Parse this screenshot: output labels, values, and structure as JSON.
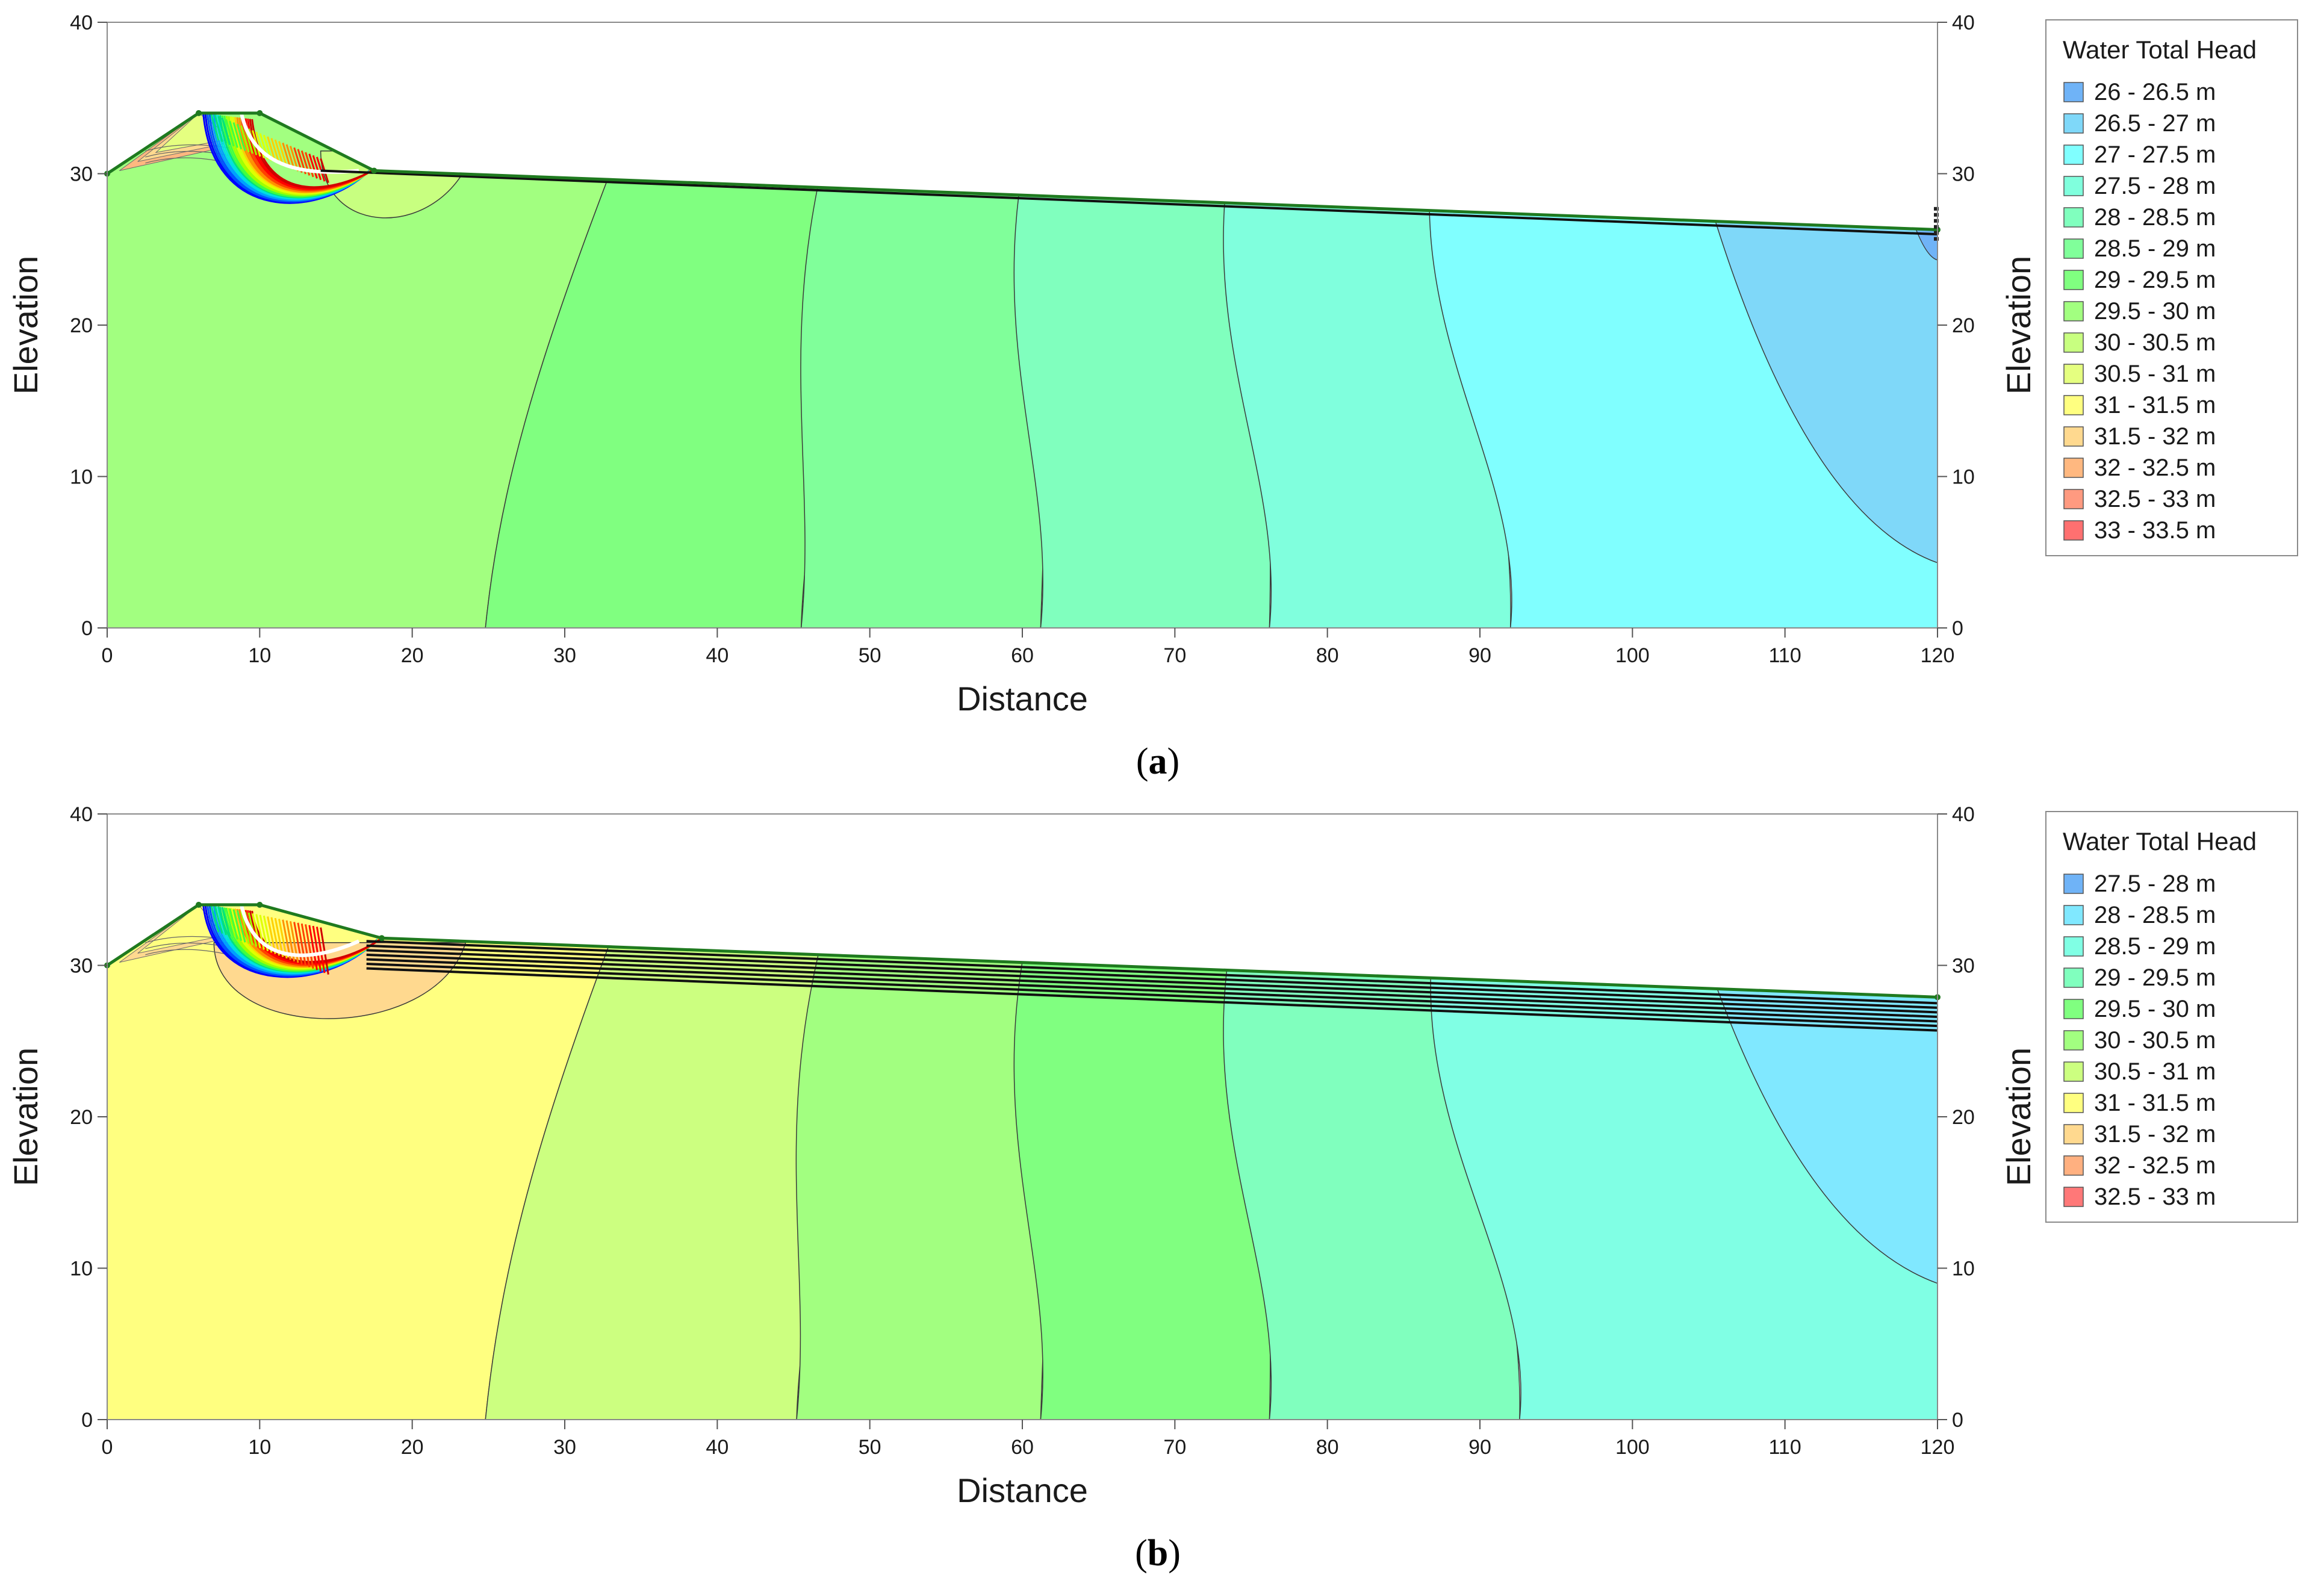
{
  "chart_data": [
    {
      "type": "heatmap",
      "panel_label": "a",
      "xlabel": "Distance",
      "ylabel": "Elevation",
      "xlim": [
        0,
        120
      ],
      "ylim": [
        0,
        40
      ],
      "xticks": [
        0,
        10,
        20,
        30,
        40,
        50,
        60,
        70,
        80,
        90,
        100,
        110,
        120
      ],
      "yticks": [
        0,
        10,
        20,
        30,
        40
      ],
      "legend_position": "right",
      "legend_title": "Water Total Head",
      "legend": [
        {
          "label": "26 - 26.5 m",
          "color": "#6fb3f7"
        },
        {
          "label": "26.5 - 27 m",
          "color": "#7fd8f9"
        },
        {
          "label": "27 - 27.5 m",
          "color": "#80ffff"
        },
        {
          "label": "27.5 - 28 m",
          "color": "#80ffdd"
        },
        {
          "label": "28 - 28.5 m",
          "color": "#80ffbe"
        },
        {
          "label": "28.5 - 29 m",
          "color": "#80ff9a"
        },
        {
          "label": "29 - 29.5 m",
          "color": "#80ff80"
        },
        {
          "label": "29.5 - 30 m",
          "color": "#a2ff80"
        },
        {
          "label": "30 - 30.5 m",
          "color": "#c8ff80"
        },
        {
          "label": "30.5 - 31 m",
          "color": "#e5ff80"
        },
        {
          "label": "31 - 31.5 m",
          "color": "#ffff80"
        },
        {
          "label": "31.5 - 32 m",
          "color": "#ffd98f"
        },
        {
          "label": "32 - 32.5 m",
          "color": "#ffb880"
        },
        {
          "label": "32.5 - 33 m",
          "color": "#ff9a80"
        },
        {
          "label": "33 - 33.5 m",
          "color": "#ff7070"
        }
      ],
      "bands": [
        {
          "head": "29.5 - 30 m",
          "bottom_x": 0
        },
        {
          "head": "29 - 29.5 m",
          "bottom_x": 24.8
        },
        {
          "head": "28.5 - 29 m",
          "bottom_x": 45.5
        },
        {
          "head": "28 - 28.5 m",
          "bottom_x": 61.2
        },
        {
          "head": "27.5 - 28 m",
          "bottom_x": 76.2
        },
        {
          "head": "27 - 27.5 m",
          "bottom_x": 92
        }
      ],
      "contour_boundaries_top_x": [
        36.8,
        49.8,
        62.7,
        76.0,
        89.0
      ],
      "outlet_region": {
        "head": "26.5 - 27 m",
        "top_x": 102,
        "right_elevation": 4.3
      },
      "corner_region": {
        "head": "26 - 26.5 m",
        "top_x": 115.5,
        "right_elevation": 24.3
      },
      "ground_surface": [
        [
          0,
          30
        ],
        [
          6,
          34
        ],
        [
          10,
          34
        ],
        [
          17.5,
          30.2
        ],
        [
          120,
          26.3
        ]
      ],
      "phreatic_lines": [
        [
          [
            14,
            30.2
          ],
          [
            120,
            26
          ]
        ]
      ],
      "seepage_bulb": {
        "head": "30 - 30.5 m",
        "from_x": 14.0,
        "to_x": 24.0,
        "bottom_elevation": 26.8
      }
    },
    {
      "type": "heatmap",
      "panel_label": "b",
      "xlabel": "Distance",
      "ylabel": "Elevation",
      "xlim": [
        0,
        120
      ],
      "ylim": [
        0,
        40
      ],
      "xticks": [
        0,
        10,
        20,
        30,
        40,
        50,
        60,
        70,
        80,
        90,
        100,
        110,
        120
      ],
      "yticks": [
        0,
        10,
        20,
        30,
        40
      ],
      "legend_position": "right",
      "legend_title": "Water Total Head",
      "legend": [
        {
          "label": "27.5 - 28 m",
          "color": "#6fb3f7"
        },
        {
          "label": "28 - 28.5 m",
          "color": "#80e8ff"
        },
        {
          "label": "28.5 - 29 m",
          "color": "#80ffe4"
        },
        {
          "label": "29 - 29.5 m",
          "color": "#80ffbe"
        },
        {
          "label": "29.5 - 30 m",
          "color": "#80ff80"
        },
        {
          "label": "30 - 30.5 m",
          "color": "#a2ff80"
        },
        {
          "label": "30.5 - 31 m",
          "color": "#ccff80"
        },
        {
          "label": "31 - 31.5 m",
          "color": "#ffff80"
        },
        {
          "label": "31.5 - 32 m",
          "color": "#ffd98f"
        },
        {
          "label": "32 - 32.5 m",
          "color": "#ffb080"
        },
        {
          "label": "32.5 - 33 m",
          "color": "#ff7878"
        }
      ],
      "bands": [
        {
          "head": "31 - 31.5 m",
          "bottom_x": 0
        },
        {
          "head": "30.5 - 31 m",
          "bottom_x": 24.8
        },
        {
          "head": "30 - 30.5 m",
          "bottom_x": 45.2
        },
        {
          "head": "29.5 - 30 m",
          "bottom_x": 61.2
        },
        {
          "head": "29 - 29.5 m",
          "bottom_x": 76.2
        },
        {
          "head": "28.5 - 29 m",
          "bottom_x": 92.6
        }
      ],
      "contour_boundaries_top_x": [
        36.2,
        49.5,
        62.7,
        76.0,
        89.0
      ],
      "outlet_region": {
        "head": "28 - 28.5 m",
        "top_x": 102,
        "right_elevation": 9.0
      },
      "corner_region": null,
      "ground_surface": [
        [
          0,
          30
        ],
        [
          6,
          34
        ],
        [
          10,
          34
        ],
        [
          18,
          31.8
        ],
        [
          120,
          27.9
        ]
      ],
      "phreatic_lines": [
        [
          [
            17,
            31.6
          ],
          [
            120,
            27.5
          ]
        ],
        [
          [
            17,
            31.3
          ],
          [
            120,
            27.2
          ]
        ],
        [
          [
            17,
            31.0
          ],
          [
            120,
            26.9
          ]
        ],
        [
          [
            17,
            30.7
          ],
          [
            120,
            26.6
          ]
        ],
        [
          [
            17,
            30.4
          ],
          [
            120,
            26.3
          ]
        ],
        [
          [
            17,
            30.1
          ],
          [
            120,
            26.0
          ]
        ],
        [
          [
            17,
            29.8
          ],
          [
            120,
            25.7
          ]
        ]
      ],
      "seepage_bulb": {
        "head": "31.5 - 32 m",
        "from_x": 7.0,
        "to_x": 23.5,
        "bottom_elevation": 26.0
      }
    }
  ]
}
